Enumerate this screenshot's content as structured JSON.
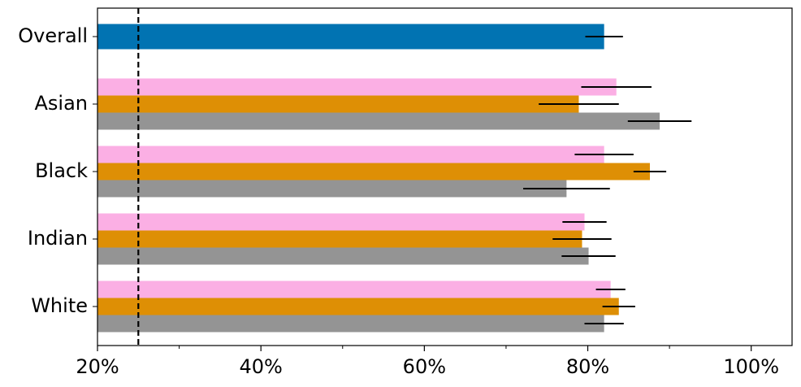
{
  "chart_data": {
    "type": "barh",
    "categories": [
      "Overall",
      "Asian",
      "Black",
      "Indian",
      "White"
    ],
    "series": [
      {
        "color": "#0173b2",
        "values": [
          82.0,
          null,
          null,
          null,
          null
        ],
        "errors": [
          2.3,
          null,
          null,
          null,
          null
        ]
      },
      {
        "color": "#fbafe4",
        "values": [
          null,
          83.5,
          82.0,
          79.6,
          82.8
        ],
        "errors": [
          null,
          4.3,
          3.6,
          2.7,
          1.8
        ]
      },
      {
        "color": "#de8f05",
        "values": [
          null,
          78.9,
          87.6,
          79.3,
          83.8
        ],
        "errors": [
          null,
          4.9,
          2.0,
          3.6,
          2.0
        ]
      },
      {
        "color": "#949494",
        "values": [
          null,
          88.8,
          77.4,
          80.1,
          82.0
        ],
        "errors": [
          null,
          3.9,
          5.3,
          3.3,
          2.4
        ]
      }
    ],
    "xlim": [
      20,
      105
    ],
    "xticks": [
      {
        "value": 20,
        "label": "20%"
      },
      {
        "value": 40,
        "label": "40%"
      },
      {
        "value": 60,
        "label": "60%"
      },
      {
        "value": 80,
        "label": "80%"
      },
      {
        "value": 100,
        "label": "100%"
      }
    ],
    "xminorticks": [
      30,
      50,
      70,
      90
    ],
    "reference_line": 25,
    "grid": false
  }
}
